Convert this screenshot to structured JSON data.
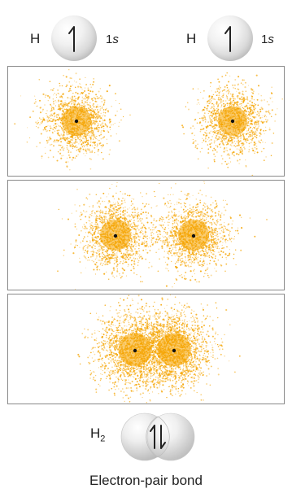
{
  "top": {
    "left_atom": {
      "element": "H",
      "orbital": "1",
      "orbital_letter": "s"
    },
    "right_atom": {
      "element": "H",
      "orbital": "1",
      "orbital_letter": "s"
    }
  },
  "panels": [
    {
      "stage": "separated-atoms",
      "nuclei": 2
    },
    {
      "stage": "approaching-atoms",
      "nuclei": 2
    },
    {
      "stage": "bonded-molecule",
      "nuclei": 2
    }
  ],
  "bottom": {
    "molecule_label": "H",
    "molecule_subscript": "2",
    "caption": "Electron-pair bond"
  },
  "colors": {
    "electron_cloud": "#f5a400",
    "nucleus": "#111111",
    "sphere": "#d9d9d9",
    "panel_border": "#8a8a8a"
  }
}
